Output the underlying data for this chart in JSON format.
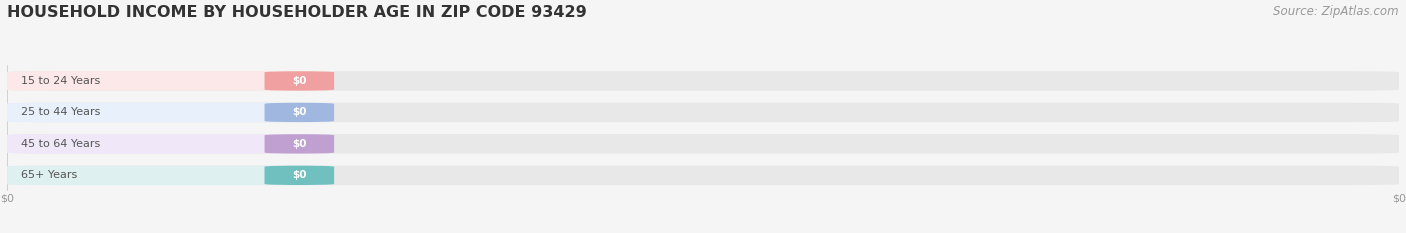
{
  "title": "HOUSEHOLD INCOME BY HOUSEHOLDER AGE IN ZIP CODE 93429",
  "source_text": "Source: ZipAtlas.com",
  "categories": [
    "15 to 24 Years",
    "25 to 44 Years",
    "45 to 64 Years",
    "65+ Years"
  ],
  "values": [
    0,
    0,
    0,
    0
  ],
  "bar_colors": [
    "#f0a0a0",
    "#a0b8e0",
    "#c0a0d0",
    "#70c0c0"
  ],
  "label_bg_colors": [
    "#fce8e8",
    "#e8f0fc",
    "#f0e8f8",
    "#dff0f0"
  ],
  "background_color": "#f5f5f5",
  "bar_bg_color": "#e8e8e8",
  "title_fontsize": 11.5,
  "source_fontsize": 8.5,
  "figsize": [
    14.06,
    2.33
  ],
  "dpi": 100
}
